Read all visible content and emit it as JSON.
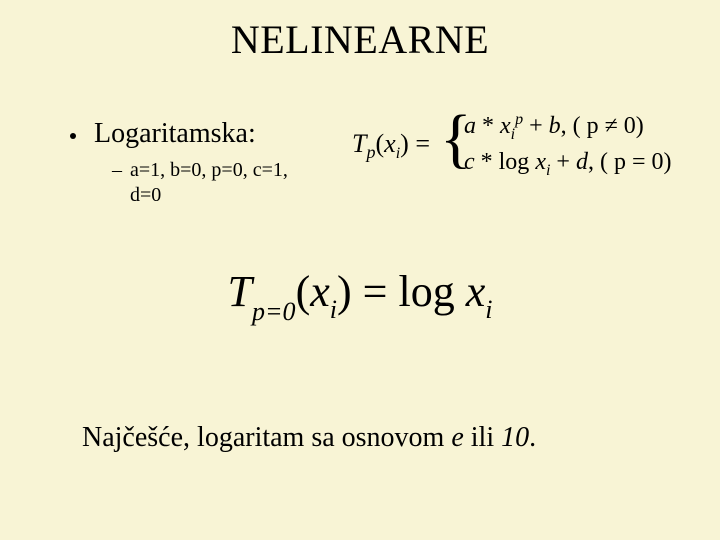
{
  "background_color": "#f8f4d5",
  "text_color": "#000000",
  "font_family": "Times New Roman",
  "title": {
    "text": "NELINEARNE",
    "fontsize": 40,
    "color": "#000000"
  },
  "bullet_main": {
    "text": "Logaritamska:",
    "fontsize": 28,
    "marker": "disc"
  },
  "bullet_sub": {
    "line1": "a=1, b=0, p=0, c=1,",
    "line2": "d=0",
    "fontsize": 20,
    "marker": "dash"
  },
  "piecewise_formula": {
    "lhs": {
      "T": "T",
      "sub": "p",
      "arg_x": "x",
      "arg_sub": "i",
      "equals": " = "
    },
    "case1": {
      "a": "a",
      "star": " * ",
      "x": "x",
      "x_sub": "i",
      "x_sup": "p",
      "plus_b": " + b",
      "cond": ", ( p ≠ 0)"
    },
    "case2": {
      "c": "c",
      "star": " * ",
      "log": "log ",
      "x": "x",
      "x_sub": "i",
      "plus_d": " + d",
      "cond": ", ( p = 0)"
    },
    "fontsize": 24,
    "brace_fontsize": 66
  },
  "main_formula": {
    "T": "T",
    "sub": "p=0",
    "open": "(",
    "x": "x",
    "x_sub": "i",
    "close": ")",
    "equals": " = ",
    "log": "log ",
    "rhs_x": "x",
    "rhs_x_sub": "i",
    "fontsize": 44,
    "sub_fontsize": 26
  },
  "bottom": {
    "text": "Najčešće, logaritam sa osnovom ",
    "e": "e",
    "ili": " ili ",
    "ten": "10",
    "period": ".",
    "fontsize": 28
  }
}
